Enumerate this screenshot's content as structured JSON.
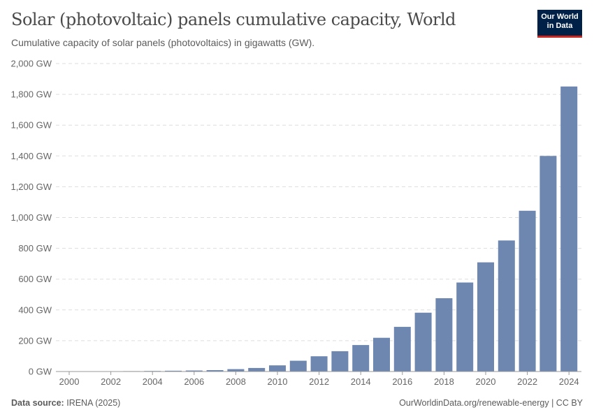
{
  "header": {
    "title": "Solar (photovoltaic) panels cumulative capacity, World",
    "subtitle": "Cumulative capacity of solar panels (photovoltaics) in gigawatts (GW).",
    "logo": "Our World in Data"
  },
  "footer": {
    "source_label": "Data source:",
    "source": "IRENA (2025)",
    "link": "OurWorldinData.org/renewable-energy | CC BY"
  },
  "colors": {
    "bar": "#6d87b0",
    "grid": "#dddddd",
    "axis": "#999999"
  },
  "chart_data": {
    "type": "bar",
    "title": "Solar (photovoltaic) panels cumulative capacity, World",
    "ylim": [
      0,
      2000
    ],
    "yunit": " GW",
    "grid": true,
    "yticks": [
      "0 GW",
      "200 GW",
      "400 GW",
      "600 GW",
      "800 GW",
      "1,000 GW",
      "1,200 GW",
      "1,400 GW",
      "1,600 GW",
      "1,800 GW",
      "2,000 GW"
    ],
    "ytick_values": [
      0,
      200,
      400,
      600,
      800,
      1000,
      1200,
      1400,
      1600,
      1800,
      2000
    ],
    "xticks": [
      "2000",
      "2002",
      "2004",
      "2006",
      "2008",
      "2010",
      "2012",
      "2014",
      "2016",
      "2018",
      "2020",
      "2022",
      "2024"
    ],
    "categories": [
      "2000",
      "2001",
      "2002",
      "2003",
      "2004",
      "2005",
      "2006",
      "2007",
      "2008",
      "2009",
      "2010",
      "2011",
      "2012",
      "2013",
      "2014",
      "2015",
      "2016",
      "2017",
      "2018",
      "2019",
      "2020",
      "2021",
      "2022",
      "2023",
      "2024"
    ],
    "values": [
      1.2,
      1.5,
      2.1,
      2.7,
      3.7,
      5.1,
      6.6,
      9.1,
      15.5,
      23,
      40,
      70,
      99,
      132,
      172,
      219,
      290,
      382,
      476,
      578,
      709,
      851,
      1044,
      1400,
      1851
    ]
  }
}
